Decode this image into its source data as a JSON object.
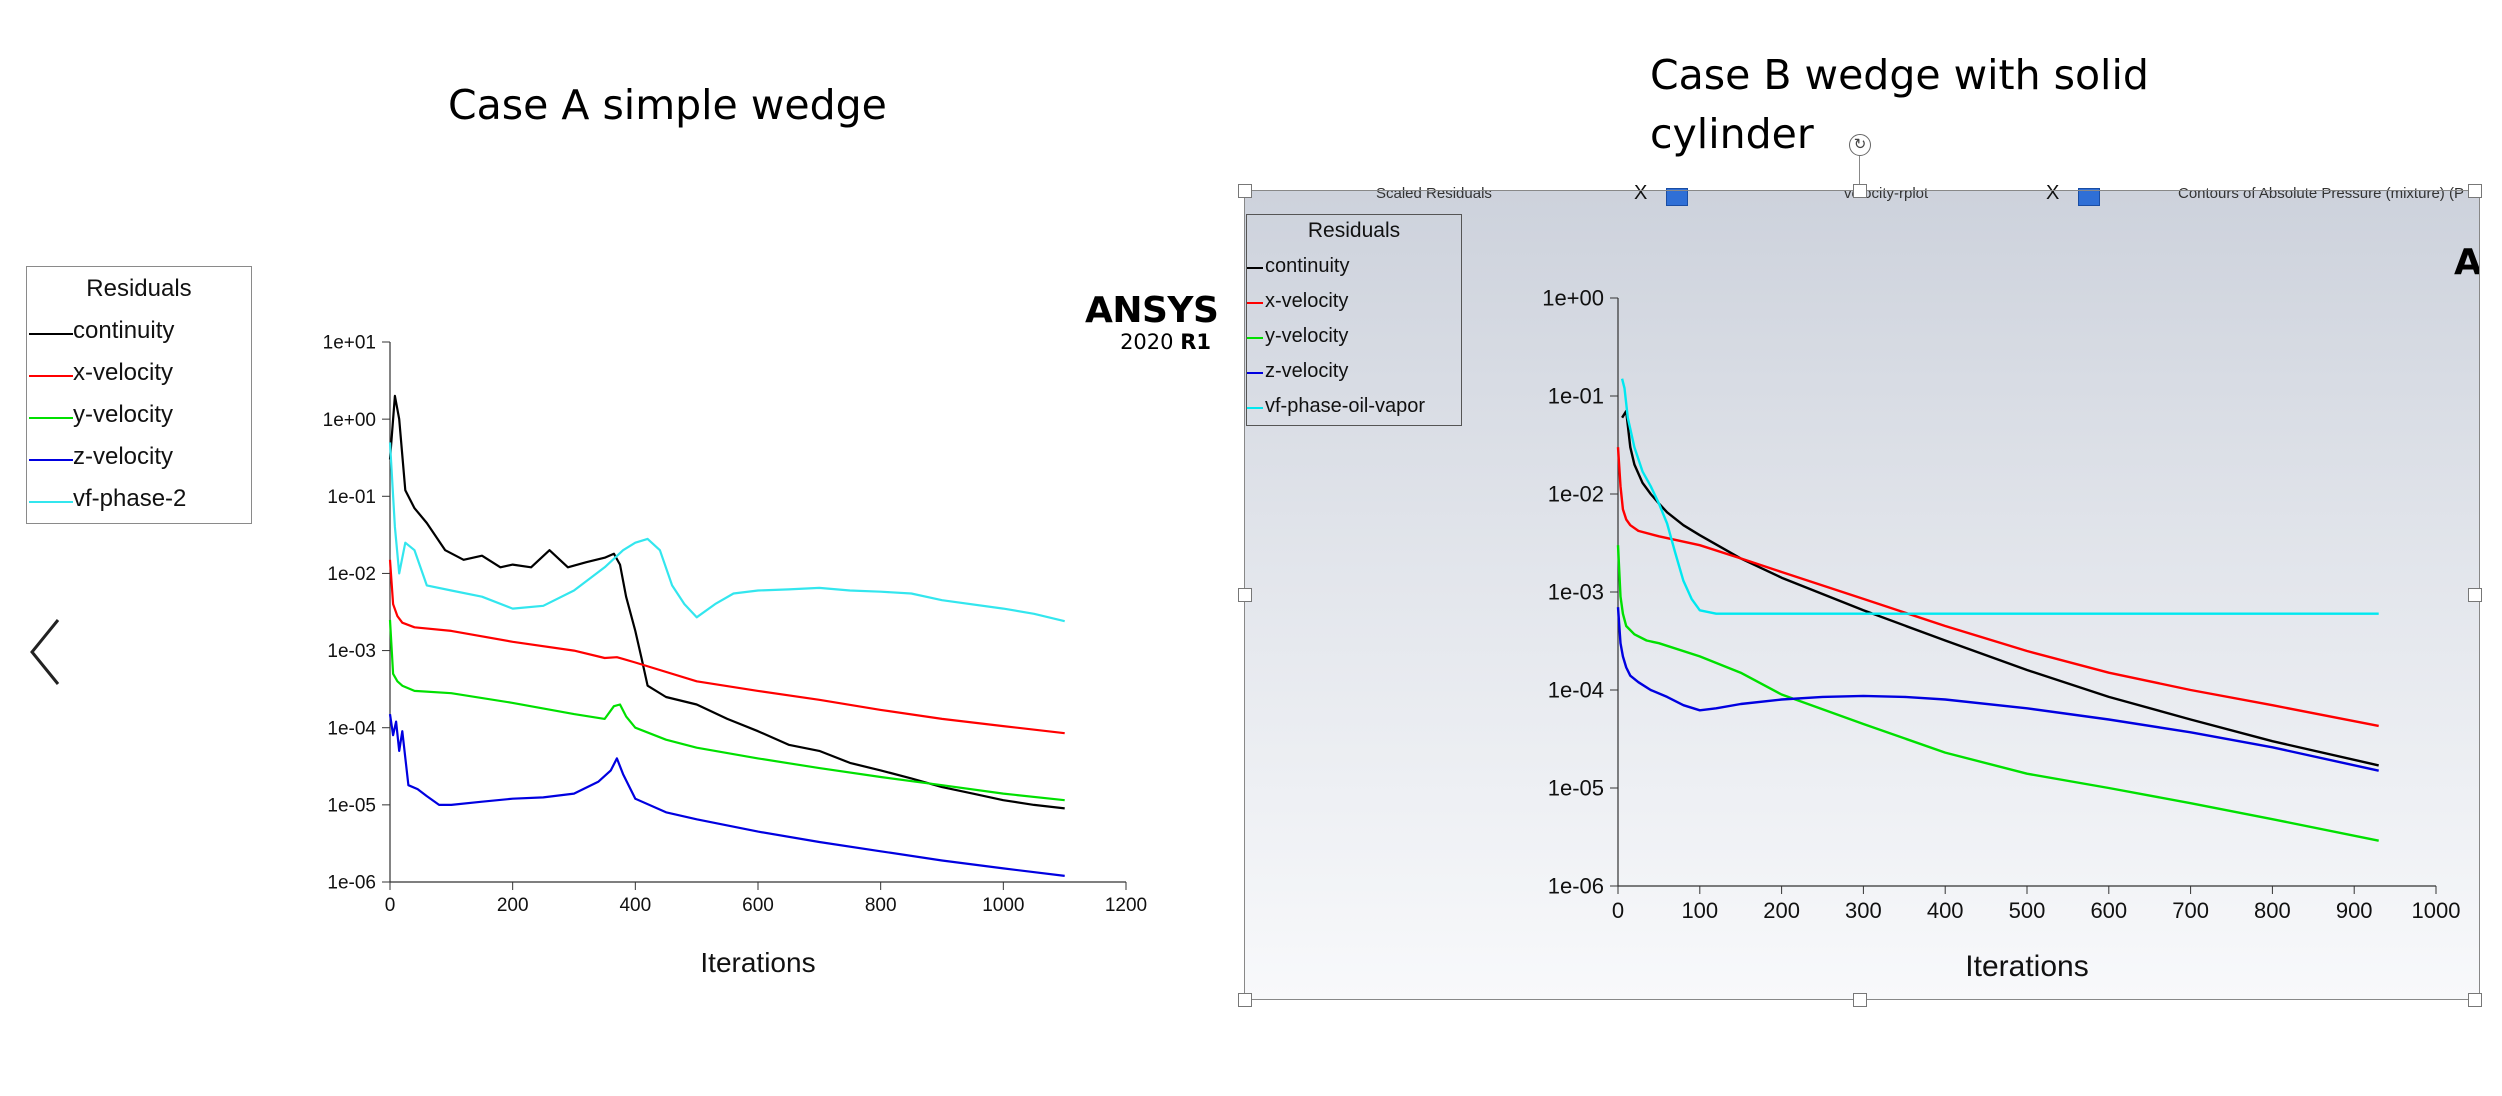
{
  "slide": {
    "title_a": "Case A simple wedge",
    "title_b": "Case B wedge with solid cylinder"
  },
  "brand": {
    "name": "ANSYS",
    "version_year": "2020",
    "version_release": "R1",
    "clipped_name": "AN"
  },
  "tabs": [
    {
      "label": "Scaled Residuals",
      "close": "X"
    },
    {
      "label": "velocity-rplot",
      "close": "X"
    },
    {
      "label": "Contours of Absolute Pressure (mixture) (P",
      "close": ""
    }
  ],
  "colors": {
    "continuity": "#000000",
    "x_velocity": "#ff0000",
    "y_velocity": "#00e000",
    "z_velocity": "#0000e0",
    "vf": "#00e8f0",
    "vf_a": "#33e6ee"
  },
  "chart_data": [
    {
      "type": "line",
      "title": "",
      "xlabel": "Iterations",
      "ylabel": "",
      "yscale": "log",
      "xlim": [
        0,
        1200
      ],
      "ylim": [
        1e-06,
        10
      ],
      "x_ticks": [
        0,
        200,
        400,
        600,
        800,
        1000,
        1200
      ],
      "x_tick_labels": [
        "0",
        "200",
        "400",
        "600",
        "800",
        "1000",
        "1200"
      ],
      "y_ticks": [
        10,
        1,
        0.1,
        0.01,
        0.001,
        0.0001,
        1e-05,
        1e-06
      ],
      "y_tick_labels": [
        "1e+01",
        "1e+00",
        "1e-01",
        "1e-02",
        "1e-03",
        "1e-04",
        "1e-05",
        "1e-06"
      ],
      "legend_title": "Residuals",
      "legend_position": "top-left outside",
      "series": [
        {
          "name": "continuity",
          "color": "#000000",
          "x": [
            0,
            8,
            15,
            25,
            40,
            60,
            90,
            120,
            150,
            180,
            200,
            230,
            260,
            290,
            320,
            350,
            365,
            375,
            385,
            400,
            410,
            420,
            450,
            500,
            550,
            600,
            650,
            700,
            750,
            800,
            850,
            900,
            950,
            1000,
            1050,
            1100
          ],
          "y": [
            0.3,
            2.0,
            1.0,
            0.12,
            0.07,
            0.045,
            0.02,
            0.015,
            0.017,
            0.012,
            0.013,
            0.012,
            0.02,
            0.012,
            0.014,
            0.016,
            0.018,
            0.013,
            0.005,
            0.0018,
            0.0008,
            0.00035,
            0.00025,
            0.0002,
            0.00013,
            9e-05,
            6e-05,
            5e-05,
            3.5e-05,
            2.8e-05,
            2.2e-05,
            1.7e-05,
            1.4e-05,
            1.15e-05,
            1e-05,
            9e-06
          ]
        },
        {
          "name": "x-velocity",
          "color": "#ff0000",
          "x": [
            0,
            5,
            12,
            20,
            40,
            100,
            200,
            300,
            350,
            370,
            380,
            400,
            500,
            600,
            700,
            800,
            900,
            1000,
            1100
          ],
          "y": [
            0.015,
            0.004,
            0.0028,
            0.0023,
            0.002,
            0.0018,
            0.0013,
            0.001,
            0.0008,
            0.00082,
            0.00078,
            0.0007,
            0.0004,
            0.0003,
            0.00023,
            0.00017,
            0.00013,
            0.000105,
            8.5e-05
          ]
        },
        {
          "name": "y-velocity",
          "color": "#00e000",
          "x": [
            0,
            5,
            12,
            20,
            40,
            100,
            200,
            300,
            350,
            365,
            375,
            385,
            400,
            450,
            500,
            600,
            700,
            800,
            900,
            1000,
            1100
          ],
          "y": [
            0.0025,
            0.0005,
            0.0004,
            0.00035,
            0.0003,
            0.00028,
            0.00021,
            0.00015,
            0.00013,
            0.00019,
            0.0002,
            0.00014,
            0.0001,
            7e-05,
            5.5e-05,
            4e-05,
            3e-05,
            2.3e-05,
            1.8e-05,
            1.4e-05,
            1.15e-05
          ]
        },
        {
          "name": "z-velocity",
          "color": "#0000e0",
          "x": [
            0,
            5,
            10,
            15,
            20,
            30,
            45,
            60,
            80,
            100,
            150,
            200,
            250,
            300,
            340,
            360,
            370,
            380,
            400,
            450,
            500,
            600,
            700,
            800,
            900,
            1000,
            1100
          ],
          "y": [
            0.00015,
            8e-05,
            0.00012,
            5e-05,
            9e-05,
            1.8e-05,
            1.6e-05,
            1.3e-05,
            1e-05,
            1e-05,
            1.1e-05,
            1.2e-05,
            1.25e-05,
            1.4e-05,
            2e-05,
            2.8e-05,
            4e-05,
            2.5e-05,
            1.2e-05,
            8e-06,
            6.5e-06,
            4.5e-06,
            3.3e-06,
            2.5e-06,
            1.9e-06,
            1.5e-06,
            1.2e-06
          ]
        },
        {
          "name": "vf-phase-2",
          "color": "#33e6ee",
          "x": [
            0,
            8,
            15,
            25,
            40,
            60,
            100,
            150,
            200,
            250,
            300,
            350,
            380,
            400,
            420,
            440,
            460,
            480,
            500,
            530,
            560,
            600,
            650,
            700,
            750,
            800,
            850,
            900,
            1000,
            1050,
            1100
          ],
          "y": [
            0.5,
            0.04,
            0.01,
            0.025,
            0.02,
            0.007,
            0.006,
            0.005,
            0.0035,
            0.0038,
            0.006,
            0.012,
            0.02,
            0.025,
            0.028,
            0.02,
            0.007,
            0.004,
            0.0027,
            0.004,
            0.0055,
            0.006,
            0.0062,
            0.0065,
            0.006,
            0.0058,
            0.0055,
            0.0045,
            0.0035,
            0.003,
            0.0024
          ]
        }
      ]
    },
    {
      "type": "line",
      "title": "",
      "xlabel": "Iterations",
      "ylabel": "",
      "yscale": "log",
      "xlim": [
        0,
        1000
      ],
      "ylim": [
        1e-06,
        1
      ],
      "x_ticks": [
        0,
        100,
        200,
        300,
        400,
        500,
        600,
        700,
        800,
        900,
        1000
      ],
      "x_tick_labels": [
        "0",
        "100",
        "200",
        "300",
        "400",
        "500",
        "600",
        "700",
        "800",
        "900",
        "1000"
      ],
      "y_ticks": [
        1,
        0.1,
        0.01,
        0.001,
        0.0001,
        1e-05,
        1e-06
      ],
      "y_tick_labels": [
        "1e+00",
        "1e-01",
        "1e-02",
        "1e-03",
        "1e-04",
        "1e-05",
        "1e-06"
      ],
      "legend_title": "Residuals",
      "legend_position": "top-left outside",
      "series": [
        {
          "name": "continuity",
          "color": "#000000",
          "x": [
            5,
            10,
            15,
            20,
            30,
            40,
            50,
            60,
            80,
            100,
            150,
            200,
            300,
            400,
            500,
            600,
            700,
            800,
            930
          ],
          "y": [
            0.06,
            0.07,
            0.03,
            0.02,
            0.013,
            0.01,
            0.008,
            0.0065,
            0.0048,
            0.0038,
            0.0022,
            0.0014,
            0.00065,
            0.00032,
            0.00016,
            8.5e-05,
            5e-05,
            3e-05,
            1.7e-05
          ]
        },
        {
          "name": "x-velocity",
          "color": "#ff0000",
          "x": [
            0,
            3,
            6,
            10,
            15,
            25,
            50,
            100,
            150,
            200,
            300,
            400,
            500,
            600,
            700,
            800,
            930
          ],
          "y": [
            0.03,
            0.012,
            0.007,
            0.0055,
            0.0048,
            0.0042,
            0.0037,
            0.003,
            0.0022,
            0.0016,
            0.00085,
            0.00045,
            0.00025,
            0.00015,
            0.0001,
            7e-05,
            4.3e-05
          ]
        },
        {
          "name": "y-velocity",
          "color": "#00e000",
          "x": [
            0,
            3,
            6,
            10,
            20,
            35,
            50,
            100,
            150,
            200,
            300,
            400,
            500,
            600,
            700,
            800,
            930
          ],
          "y": [
            0.003,
            0.0009,
            0.0006,
            0.00045,
            0.00037,
            0.00032,
            0.0003,
            0.00022,
            0.00015,
            9e-05,
            4.5e-05,
            2.3e-05,
            1.4e-05,
            1e-05,
            7e-06,
            4.8e-06,
            2.9e-06
          ]
        },
        {
          "name": "z-velocity",
          "color": "#0000e0",
          "x": [
            0,
            3,
            6,
            10,
            15,
            25,
            40,
            60,
            80,
            100,
            120,
            150,
            200,
            250,
            300,
            350,
            400,
            500,
            600,
            700,
            800,
            930
          ],
          "y": [
            0.0007,
            0.0003,
            0.00022,
            0.00017,
            0.00014,
            0.00012,
            0.0001,
            8.5e-05,
            7e-05,
            6.2e-05,
            6.5e-05,
            7.2e-05,
            8e-05,
            8.5e-05,
            8.7e-05,
            8.5e-05,
            8e-05,
            6.5e-05,
            5e-05,
            3.7e-05,
            2.6e-05,
            1.5e-05
          ]
        },
        {
          "name": "vf-phase-oil-vapor",
          "color": "#00e8f0",
          "x": [
            5,
            8,
            12,
            20,
            30,
            40,
            50,
            60,
            70,
            80,
            90,
            100,
            120,
            150,
            200,
            300,
            500,
            700,
            930
          ],
          "y": [
            0.15,
            0.12,
            0.06,
            0.03,
            0.017,
            0.012,
            0.008,
            0.005,
            0.0025,
            0.0013,
            0.00085,
            0.00065,
            0.0006,
            0.0006,
            0.0006,
            0.0006,
            0.0006,
            0.0006,
            0.0006
          ]
        }
      ]
    }
  ]
}
